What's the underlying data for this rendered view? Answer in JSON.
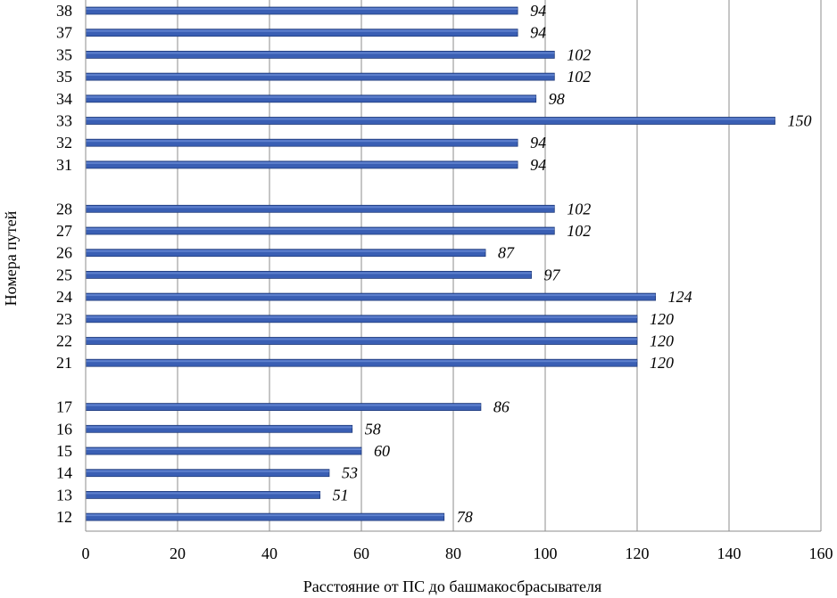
{
  "chart_data": {
    "type": "bar",
    "orientation": "horizontal",
    "categories": [
      "38",
      "37",
      "35",
      "35",
      "34",
      "33",
      "32",
      "31",
      "",
      "28",
      "27",
      "26",
      "25",
      "24",
      "23",
      "22",
      "21",
      "",
      "17",
      "16",
      "15",
      "14",
      "13",
      "12"
    ],
    "values": [
      94,
      94,
      102,
      102,
      98,
      150,
      94,
      94,
      null,
      102,
      102,
      87,
      97,
      124,
      120,
      120,
      120,
      null,
      86,
      58,
      60,
      53,
      51,
      78
    ],
    "data_labels": [
      "94",
      "94",
      "102",
      "102",
      "98",
      "150",
      "94",
      "94",
      "",
      "102",
      "102",
      "87",
      "97",
      "124",
      "120",
      "120",
      "120",
      "",
      "86",
      "58",
      "60",
      "53",
      "51",
      "78"
    ],
    "xlabel": "Расстояние от ПС до башмакосбрасывателя",
    "ylabel": "Номера путей",
    "xlim": [
      0,
      160
    ],
    "xticks": [
      0,
      20,
      40,
      60,
      80,
      100,
      120,
      140,
      160
    ],
    "grid": true,
    "bar_color": "#3a5fb4",
    "bar_edge_color": "#1f3a7a"
  }
}
